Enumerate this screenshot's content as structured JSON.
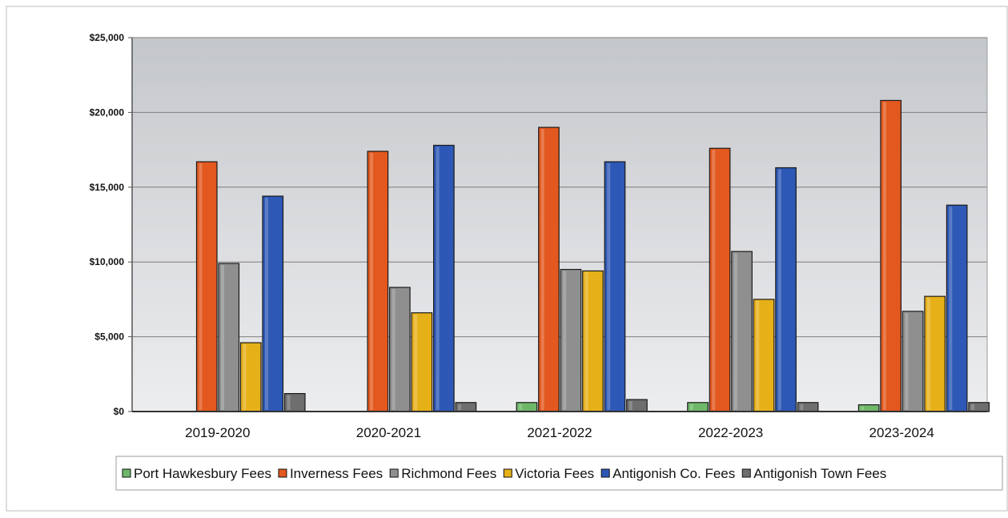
{
  "chart_data": {
    "type": "bar",
    "title": "",
    "xlabel": "",
    "ylabel": "",
    "categories": [
      "2019-2020",
      "2020-2021",
      "2021-2022",
      "2022-2023",
      "2023-2024"
    ],
    "ylim": [
      0,
      25000
    ],
    "yticks": [
      0,
      5000,
      10000,
      15000,
      20000,
      25000
    ],
    "ytick_labels": [
      "$0",
      "$5,000",
      "$10,000",
      "$15,000",
      "$20,000",
      "$25,000"
    ],
    "grid": true,
    "legend_position": "bottom",
    "series": [
      {
        "name": "Port Hawkesbury Fees",
        "color": "#6fb86a",
        "values": [
          0,
          0,
          600,
          600,
          450
        ]
      },
      {
        "name": "Inverness Fees",
        "color": "#e2581e",
        "values": [
          16700,
          17400,
          19000,
          17600,
          20800
        ]
      },
      {
        "name": "Richmond Fees",
        "color": "#8f8f8f",
        "values": [
          9900,
          8300,
          9500,
          10700,
          6700
        ]
      },
      {
        "name": "Victoria Fees",
        "color": "#e6b019",
        "values": [
          4600,
          6600,
          9400,
          7500,
          7700
        ]
      },
      {
        "name": "Antigonish Co. Fees",
        "color": "#2d58b5",
        "values": [
          14400,
          17800,
          16700,
          16300,
          13800
        ]
      },
      {
        "name": "Antigonish Town Fees",
        "color": "#6e6e6e",
        "values": [
          1200,
          600,
          800,
          600,
          600
        ]
      }
    ]
  }
}
